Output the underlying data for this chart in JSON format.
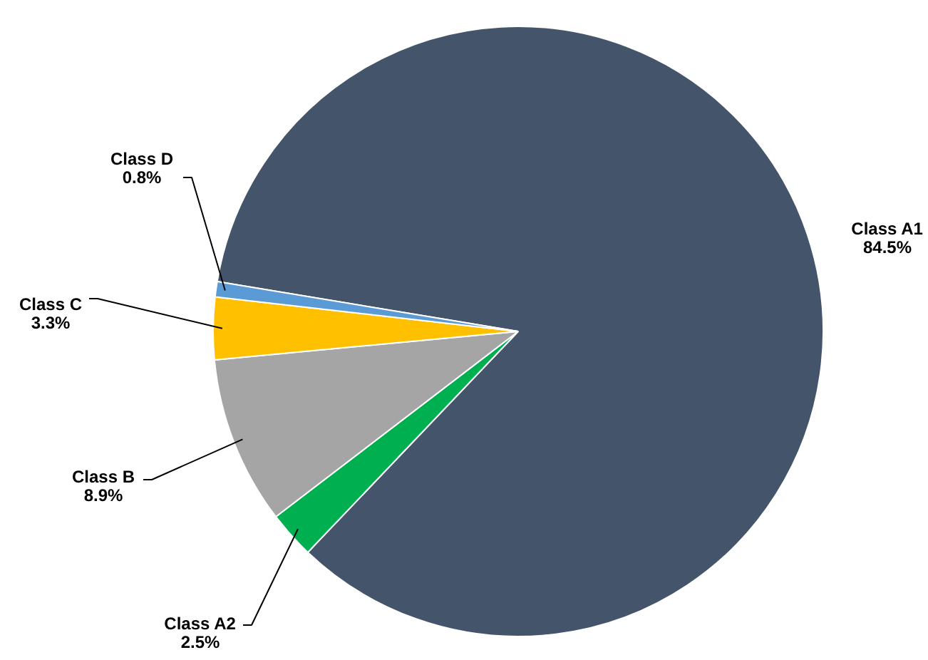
{
  "chart_data": {
    "type": "pie",
    "categories": [
      "Class A1",
      "Class A2",
      "Class B",
      "Class C",
      "Class D"
    ],
    "values": [
      84.5,
      2.5,
      8.9,
      3.3,
      0.8
    ],
    "colors": [
      "#44546a",
      "#00b050",
      "#a5a5a5",
      "#ffc000",
      "#5b9bd5"
    ],
    "value_labels": [
      "84.5%",
      "2.5%",
      "8.9%",
      "3.3%",
      "0.8%"
    ]
  }
}
